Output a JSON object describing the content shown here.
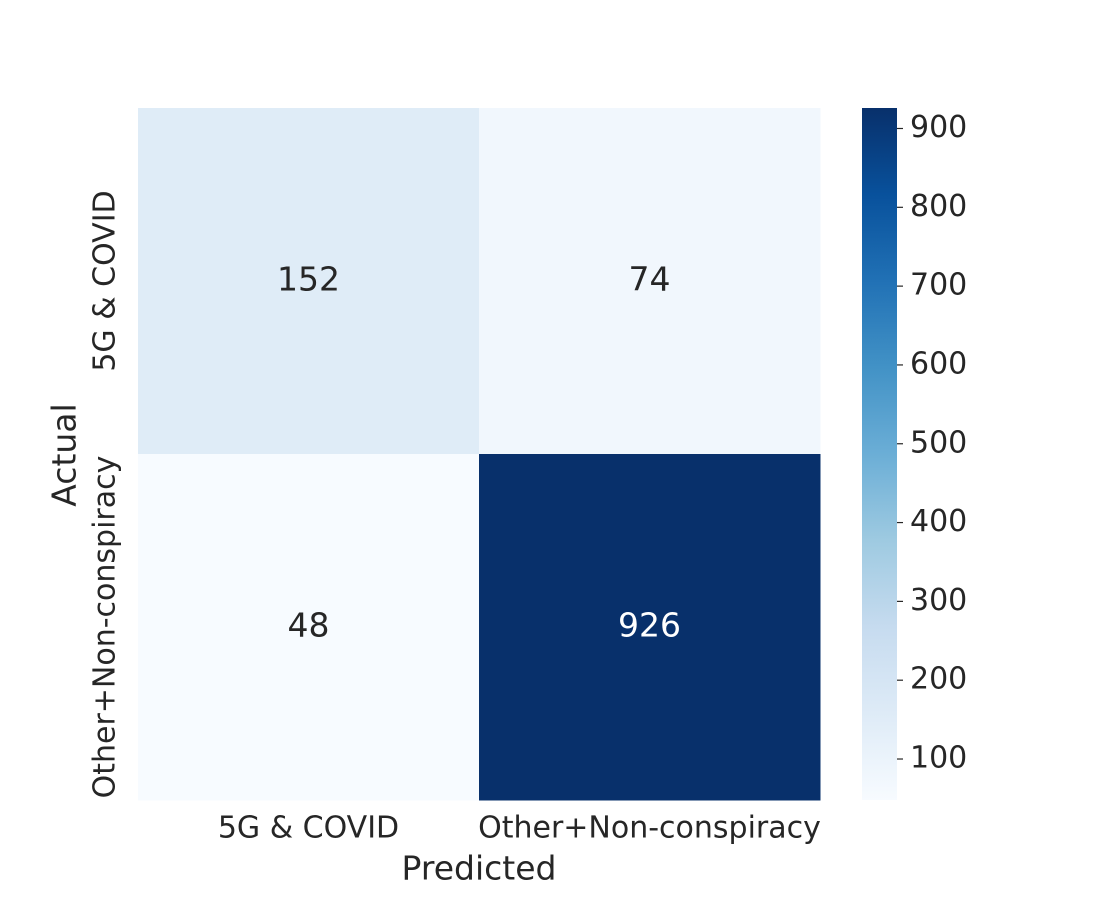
{
  "chart_data": {
    "type": "heatmap",
    "x_categories": [
      "5G & COVID",
      "Other+Non-conspiracy"
    ],
    "y_categories": [
      "5G & COVID",
      "Other+Non-conspiracy"
    ],
    "values": [
      [
        152,
        74
      ],
      [
        48,
        926
      ]
    ],
    "xlabel": "Predicted",
    "ylabel": "Actual",
    "colormap": "Blues",
    "clim": [
      48,
      926
    ],
    "cticks": [
      100,
      200,
      300,
      400,
      500,
      600,
      700,
      800,
      900
    ]
  }
}
